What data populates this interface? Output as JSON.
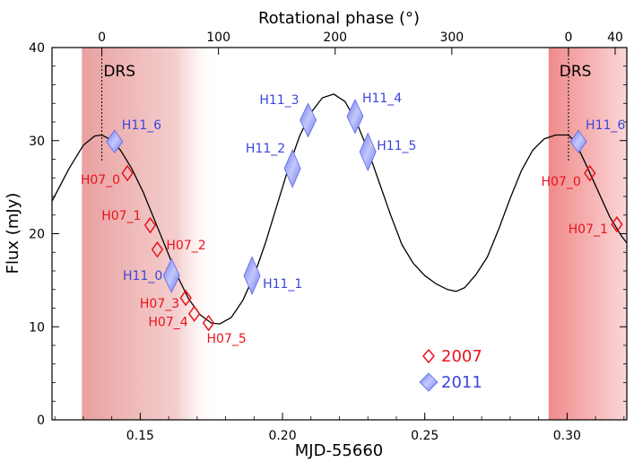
{
  "chart_data": {
    "type": "line",
    "xlabel": "MJD-55660",
    "ylabel": "Flux (mJy)",
    "top_xlabel": "Rotational phase (°)",
    "xlim": [
      0.119,
      0.321
    ],
    "ylim": [
      0,
      40
    ],
    "x_ticks": [
      0.15,
      0.2,
      0.25,
      0.3
    ],
    "x_tick_labels": [
      "0.15",
      "0.20",
      "0.25",
      "0.30"
    ],
    "y_ticks": [
      0,
      10,
      20,
      30,
      40
    ],
    "y_tick_labels": [
      "0",
      "10",
      "20",
      "30",
      "40"
    ],
    "top_ticks": [
      {
        "x": 0.1365,
        "label": "0"
      },
      {
        "x": 0.1775,
        "label": "100"
      },
      {
        "x": 0.2185,
        "label": "200"
      },
      {
        "x": 0.2595,
        "label": "300"
      },
      {
        "x": 0.3005,
        "label": "0"
      },
      {
        "x": 0.3169,
        "label": "40"
      }
    ],
    "model_curve": {
      "x": [
        0.119,
        0.125,
        0.13,
        0.134,
        0.1365,
        0.139,
        0.143,
        0.147,
        0.151,
        0.155,
        0.159,
        0.163,
        0.167,
        0.171,
        0.175,
        0.178,
        0.182,
        0.186,
        0.19,
        0.194,
        0.198,
        0.202,
        0.206,
        0.21,
        0.214,
        0.218,
        0.222,
        0.226,
        0.23,
        0.234,
        0.238,
        0.242,
        0.246,
        0.25,
        0.254,
        0.258,
        0.261,
        0.264,
        0.268,
        0.272,
        0.276,
        0.28,
        0.284,
        0.288,
        0.292,
        0.296,
        0.3005,
        0.303,
        0.307,
        0.311,
        0.315,
        0.319,
        0.321
      ],
      "y": [
        23.5,
        27.0,
        29.5,
        30.5,
        30.6,
        30.2,
        29.0,
        27.0,
        24.5,
        21.5,
        18.5,
        15.5,
        13.0,
        11.3,
        10.4,
        10.3,
        11.0,
        12.8,
        15.5,
        19.0,
        23.0,
        27.0,
        30.5,
        33.0,
        34.6,
        35.0,
        34.2,
        32.0,
        29.0,
        25.5,
        22.0,
        18.8,
        16.8,
        15.5,
        14.6,
        14.0,
        13.8,
        14.2,
        15.6,
        17.5,
        20.5,
        23.8,
        26.8,
        29.0,
        30.2,
        30.6,
        30.6,
        29.8,
        27.2,
        24.5,
        21.8,
        19.8,
        19.0
      ]
    },
    "series": [
      {
        "name": "2007",
        "color": "#e8141c",
        "points": [
          {
            "label": "H07_0",
            "x": 0.1455,
            "y": 26.5
          },
          {
            "label": "H07_1",
            "x": 0.1535,
            "y": 20.9
          },
          {
            "label": "H07_2",
            "x": 0.156,
            "y": 18.3
          },
          {
            "label": "H07_3",
            "x": 0.166,
            "y": 13.1
          },
          {
            "label": "H07_4",
            "x": 0.169,
            "y": 11.4
          },
          {
            "label": "H07_5",
            "x": 0.174,
            "y": 10.4
          },
          {
            "label": "H07_0",
            "x": 0.308,
            "y": 26.5
          },
          {
            "label": "H07_1",
            "x": 0.3175,
            "y": 21.0
          }
        ]
      },
      {
        "name": "2011",
        "color": "#3c46dc",
        "points": [
          {
            "label": "H11_6",
            "x": 0.141,
            "y": 29.9,
            "dy": 1.2
          },
          {
            "label": "H11_0",
            "x": 0.161,
            "y": 15.5,
            "dy": 1.8
          },
          {
            "label": "H11_1",
            "x": 0.1893,
            "y": 15.5,
            "dy": 2.0
          },
          {
            "label": "H11_2",
            "x": 0.2035,
            "y": 27.0,
            "dy": 2.0
          },
          {
            "label": "H11_3",
            "x": 0.209,
            "y": 32.2,
            "dy": 1.8
          },
          {
            "label": "H11_4",
            "x": 0.2255,
            "y": 32.6,
            "dy": 1.8
          },
          {
            "label": "H11_5",
            "x": 0.23,
            "y": 28.8,
            "dy": 2.0
          },
          {
            "label": "H11_6",
            "x": 0.304,
            "y": 29.9,
            "dy": 1.2
          }
        ]
      }
    ],
    "drs_regions": [
      {
        "label": "DRS",
        "x_start": 0.1295,
        "x_end": 0.177
      },
      {
        "label": "DRS",
        "x_start": 0.2935,
        "x_end": 0.321
      }
    ],
    "phase_zero_marks": [
      0.1365,
      0.3005
    ],
    "legend": {
      "position": "bottom-right",
      "entries": [
        "2007",
        "2011"
      ]
    },
    "grid": false
  }
}
